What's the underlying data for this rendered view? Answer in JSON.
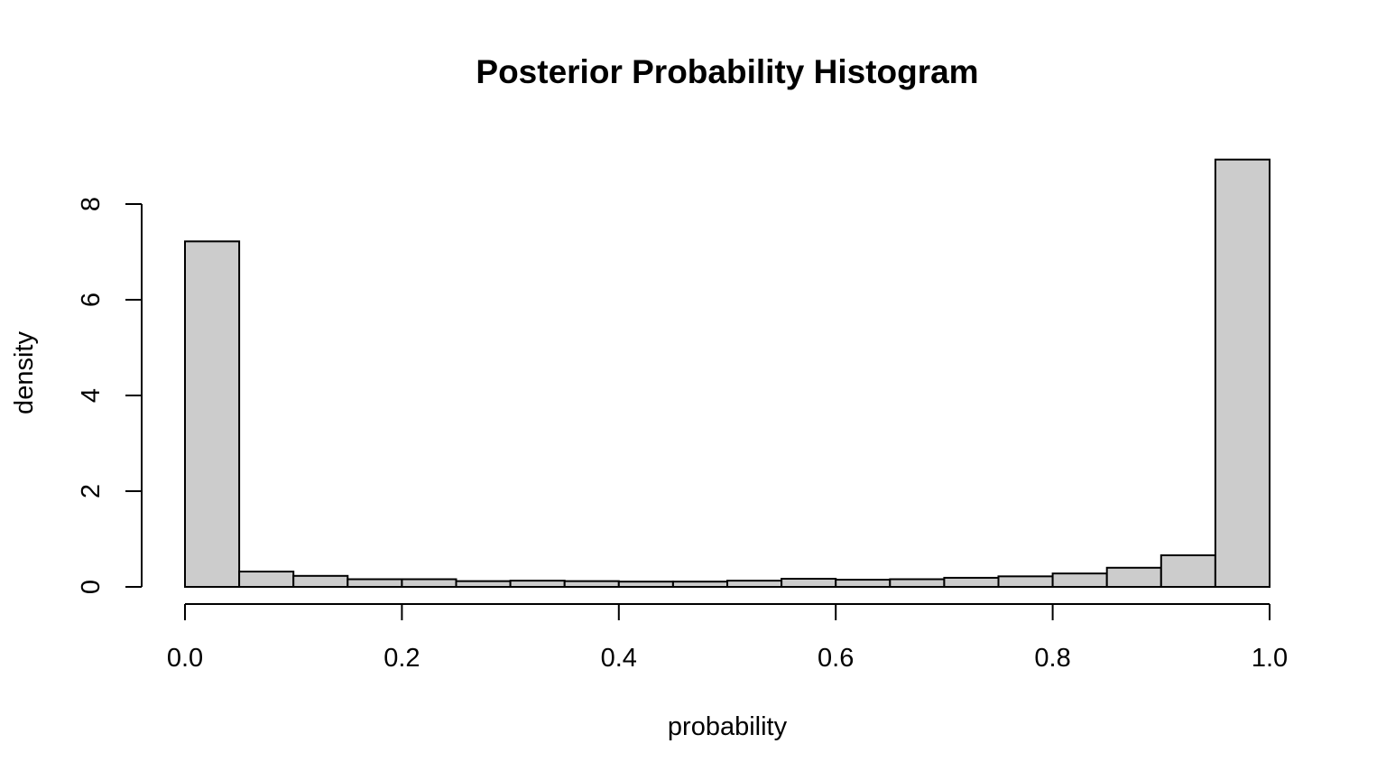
{
  "chart_data": {
    "type": "bar",
    "title": "Posterior Probability Histogram",
    "xlabel": "probability",
    "ylabel": "density",
    "xlim": [
      0.0,
      1.0
    ],
    "ylim": [
      0,
      9
    ],
    "x_ticks": [
      "0.0",
      "0.2",
      "0.4",
      "0.6",
      "0.8",
      "1.0"
    ],
    "y_ticks": [
      "0",
      "2",
      "4",
      "6",
      "8"
    ],
    "bins": [
      {
        "start": 0.0,
        "end": 0.05,
        "density": 7.22
      },
      {
        "start": 0.05,
        "end": 0.1,
        "density": 0.32
      },
      {
        "start": 0.1,
        "end": 0.15,
        "density": 0.23
      },
      {
        "start": 0.15,
        "end": 0.2,
        "density": 0.16
      },
      {
        "start": 0.2,
        "end": 0.25,
        "density": 0.16
      },
      {
        "start": 0.25,
        "end": 0.3,
        "density": 0.12
      },
      {
        "start": 0.3,
        "end": 0.35,
        "density": 0.13
      },
      {
        "start": 0.35,
        "end": 0.4,
        "density": 0.12
      },
      {
        "start": 0.4,
        "end": 0.45,
        "density": 0.11
      },
      {
        "start": 0.45,
        "end": 0.5,
        "density": 0.11
      },
      {
        "start": 0.5,
        "end": 0.55,
        "density": 0.13
      },
      {
        "start": 0.55,
        "end": 0.6,
        "density": 0.17
      },
      {
        "start": 0.6,
        "end": 0.65,
        "density": 0.15
      },
      {
        "start": 0.65,
        "end": 0.7,
        "density": 0.16
      },
      {
        "start": 0.7,
        "end": 0.75,
        "density": 0.19
      },
      {
        "start": 0.75,
        "end": 0.8,
        "density": 0.22
      },
      {
        "start": 0.8,
        "end": 0.85,
        "density": 0.28
      },
      {
        "start": 0.85,
        "end": 0.9,
        "density": 0.4
      },
      {
        "start": 0.9,
        "end": 0.95,
        "density": 0.66
      },
      {
        "start": 0.95,
        "end": 1.0,
        "density": 8.93
      }
    ],
    "bar_color": "#cccccc",
    "bar_border_color": "#000000",
    "grid": false,
    "legend": "none"
  }
}
